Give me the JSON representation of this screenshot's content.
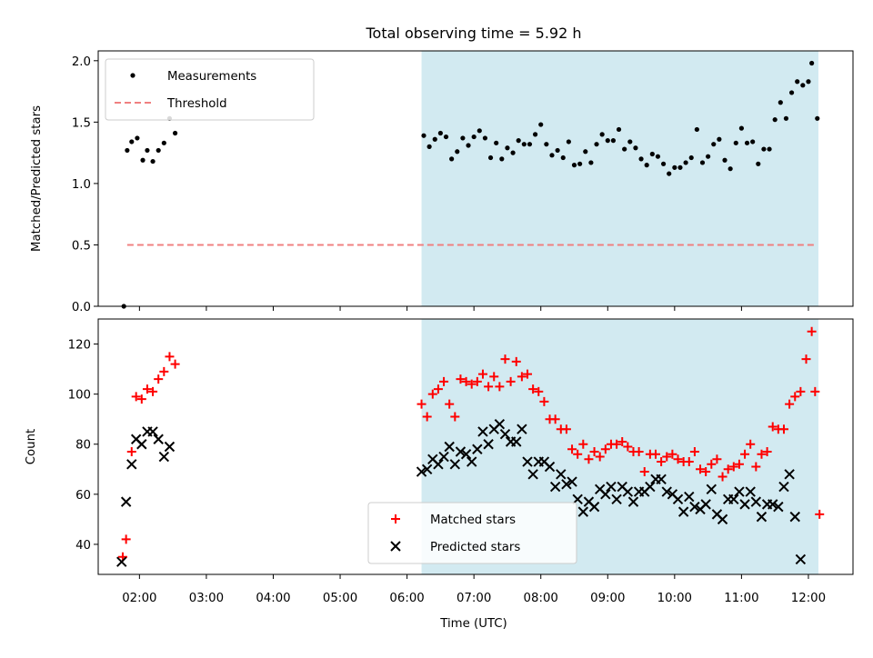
{
  "title": "Total observing time = 5.92 h",
  "xlabel": "Time (UTC)",
  "x_tick_labels": [
    "02:00",
    "03:00",
    "04:00",
    "05:00",
    "06:00",
    "07:00",
    "08:00",
    "09:00",
    "10:00",
    "11:00",
    "12:00"
  ],
  "colors": {
    "measurement": "#000000",
    "threshold": "#f08080",
    "matched": "#ff0000",
    "predicted": "#000000",
    "observing_window": "#add8e6"
  },
  "chart_data": [
    {
      "type": "scatter",
      "ylabel": "Matched/Predicted stars",
      "xlim": [
        "01:23",
        "12:40"
      ],
      "ylim": [
        0.0,
        2.08
      ],
      "y_ticks": [
        0.0,
        0.5,
        1.0,
        1.5,
        2.0
      ],
      "y_tick_labels": [
        "0.0",
        "0.5",
        "1.0",
        "1.5",
        "2.0"
      ],
      "legend_position": "upper-left",
      "observing_window": [
        "06:13",
        "12:09"
      ],
      "series": [
        {
          "name": "Measurements",
          "marker": "dot",
          "points": [
            [
              "01:46",
              0.0
            ],
            [
              "01:49",
              1.27
            ],
            [
              "01:53",
              1.34
            ],
            [
              "01:58",
              1.37
            ],
            [
              "02:03",
              1.19
            ],
            [
              "02:07",
              1.27
            ],
            [
              "02:12",
              1.18
            ],
            [
              "02:17",
              1.27
            ],
            [
              "02:22",
              1.33
            ],
            [
              "02:27",
              1.53
            ],
            [
              "02:32",
              1.41
            ],
            [
              "06:15",
              1.39
            ],
            [
              "06:20",
              1.3
            ],
            [
              "06:25",
              1.36
            ],
            [
              "06:30",
              1.41
            ],
            [
              "06:35",
              1.38
            ],
            [
              "06:40",
              1.2
            ],
            [
              "06:45",
              1.26
            ],
            [
              "06:50",
              1.37
            ],
            [
              "06:55",
              1.31
            ],
            [
              "07:00",
              1.38
            ],
            [
              "07:05",
              1.43
            ],
            [
              "07:10",
              1.37
            ],
            [
              "07:15",
              1.21
            ],
            [
              "07:20",
              1.33
            ],
            [
              "07:25",
              1.2
            ],
            [
              "07:30",
              1.29
            ],
            [
              "07:35",
              1.25
            ],
            [
              "07:40",
              1.35
            ],
            [
              "07:45",
              1.32
            ],
            [
              "07:50",
              1.32
            ],
            [
              "07:55",
              1.4
            ],
            [
              "08:00",
              1.48
            ],
            [
              "08:05",
              1.32
            ],
            [
              "08:10",
              1.23
            ],
            [
              "08:15",
              1.27
            ],
            [
              "08:20",
              1.21
            ],
            [
              "08:25",
              1.34
            ],
            [
              "08:30",
              1.15
            ],
            [
              "08:35",
              1.16
            ],
            [
              "08:40",
              1.26
            ],
            [
              "08:45",
              1.17
            ],
            [
              "08:50",
              1.32
            ],
            [
              "08:55",
              1.4
            ],
            [
              "09:00",
              1.35
            ],
            [
              "09:05",
              1.35
            ],
            [
              "09:10",
              1.44
            ],
            [
              "09:15",
              1.28
            ],
            [
              "09:20",
              1.34
            ],
            [
              "09:25",
              1.29
            ],
            [
              "09:30",
              1.2
            ],
            [
              "09:35",
              1.15
            ],
            [
              "09:40",
              1.24
            ],
            [
              "09:45",
              1.22
            ],
            [
              "09:50",
              1.16
            ],
            [
              "09:55",
              1.08
            ],
            [
              "10:00",
              1.13
            ],
            [
              "10:05",
              1.13
            ],
            [
              "10:10",
              1.17
            ],
            [
              "10:15",
              1.21
            ],
            [
              "10:20",
              1.44
            ],
            [
              "10:25",
              1.17
            ],
            [
              "10:30",
              1.22
            ],
            [
              "10:35",
              1.32
            ],
            [
              "10:40",
              1.36
            ],
            [
              "10:45",
              1.19
            ],
            [
              "10:50",
              1.12
            ],
            [
              "10:55",
              1.33
            ],
            [
              "11:00",
              1.45
            ],
            [
              "11:05",
              1.33
            ],
            [
              "11:10",
              1.34
            ],
            [
              "11:15",
              1.16
            ],
            [
              "11:20",
              1.28
            ],
            [
              "11:25",
              1.28
            ],
            [
              "11:30",
              1.52
            ],
            [
              "11:35",
              1.66
            ],
            [
              "11:40",
              1.53
            ],
            [
              "11:45",
              1.74
            ],
            [
              "11:50",
              1.83
            ],
            [
              "11:55",
              1.8
            ],
            [
              "12:00",
              1.83
            ],
            [
              "12:03",
              1.98
            ],
            [
              "12:08",
              1.53
            ]
          ]
        },
        {
          "name": "Threshold",
          "marker": "dashed-line",
          "points": [
            [
              "01:49",
              0.5
            ],
            [
              "12:08",
              0.5
            ]
          ]
        }
      ]
    },
    {
      "type": "scatter",
      "ylabel": "Count",
      "xlim": [
        "01:23",
        "12:40"
      ],
      "ylim": [
        28,
        130
      ],
      "y_ticks": [
        40,
        60,
        80,
        100,
        120
      ],
      "y_tick_labels": [
        "40",
        "60",
        "80",
        "100",
        "120"
      ],
      "legend_position": "lower-center",
      "observing_window": [
        "06:13",
        "12:09"
      ],
      "series": [
        {
          "name": "Matched stars",
          "marker": "plus",
          "points": [
            [
              "01:45",
              35
            ],
            [
              "01:48",
              42
            ],
            [
              "01:53",
              77
            ],
            [
              "01:57",
              99
            ],
            [
              "02:02",
              98
            ],
            [
              "02:07",
              102
            ],
            [
              "02:12",
              101
            ],
            [
              "02:17",
              106
            ],
            [
              "02:22",
              109
            ],
            [
              "02:27",
              115
            ],
            [
              "02:32",
              112
            ],
            [
              "06:13",
              96
            ],
            [
              "06:18",
              91
            ],
            [
              "06:23",
              100
            ],
            [
              "06:28",
              102
            ],
            [
              "06:33",
              105
            ],
            [
              "06:38",
              96
            ],
            [
              "06:43",
              91
            ],
            [
              "06:48",
              106
            ],
            [
              "06:53",
              105
            ],
            [
              "06:58",
              104
            ],
            [
              "07:03",
              105
            ],
            [
              "07:08",
              108
            ],
            [
              "07:13",
              103
            ],
            [
              "07:18",
              107
            ],
            [
              "07:23",
              103
            ],
            [
              "07:28",
              114
            ],
            [
              "07:33",
              105
            ],
            [
              "07:38",
              113
            ],
            [
              "07:43",
              107
            ],
            [
              "07:48",
              108
            ],
            [
              "07:53",
              102
            ],
            [
              "07:58",
              101
            ],
            [
              "08:03",
              97
            ],
            [
              "08:08",
              90
            ],
            [
              "08:13",
              90
            ],
            [
              "08:18",
              86
            ],
            [
              "08:23",
              86
            ],
            [
              "08:28",
              78
            ],
            [
              "08:33",
              76
            ],
            [
              "08:38",
              80
            ],
            [
              "08:43",
              74
            ],
            [
              "08:48",
              77
            ],
            [
              "08:53",
              75
            ],
            [
              "08:58",
              78
            ],
            [
              "09:03",
              80
            ],
            [
              "09:08",
              80
            ],
            [
              "09:13",
              81
            ],
            [
              "09:18",
              79
            ],
            [
              "09:23",
              77
            ],
            [
              "09:28",
              77
            ],
            [
              "09:33",
              69
            ],
            [
              "09:38",
              76
            ],
            [
              "09:43",
              76
            ],
            [
              "09:48",
              73
            ],
            [
              "09:53",
              75
            ],
            [
              "09:58",
              76
            ],
            [
              "10:03",
              74
            ],
            [
              "10:08",
              73
            ],
            [
              "10:13",
              73
            ],
            [
              "10:18",
              77
            ],
            [
              "10:23",
              70
            ],
            [
              "10:28",
              69
            ],
            [
              "10:33",
              72
            ],
            [
              "10:38",
              74
            ],
            [
              "10:43",
              67
            ],
            [
              "10:48",
              70
            ],
            [
              "10:53",
              71
            ],
            [
              "10:58",
              72
            ],
            [
              "11:03",
              76
            ],
            [
              "11:08",
              80
            ],
            [
              "11:13",
              71
            ],
            [
              "11:18",
              76
            ],
            [
              "11:23",
              77
            ],
            [
              "11:28",
              87
            ],
            [
              "11:33",
              86
            ],
            [
              "11:38",
              86
            ],
            [
              "11:43",
              96
            ],
            [
              "11:48",
              99
            ],
            [
              "11:53",
              101
            ],
            [
              "11:58",
              114
            ],
            [
              "12:03",
              125
            ],
            [
              "12:06",
              101
            ],
            [
              "12:10",
              52
            ]
          ]
        },
        {
          "name": "Predicted stars",
          "marker": "x",
          "points": [
            [
              "01:44",
              33
            ],
            [
              "01:48",
              57
            ],
            [
              "01:53",
              72
            ],
            [
              "01:57",
              82
            ],
            [
              "02:02",
              80
            ],
            [
              "02:07",
              85
            ],
            [
              "02:12",
              85
            ],
            [
              "02:17",
              82
            ],
            [
              "02:22",
              75
            ],
            [
              "02:27",
              79
            ],
            [
              "06:13",
              69
            ],
            [
              "06:18",
              70
            ],
            [
              "06:23",
              74
            ],
            [
              "06:28",
              72
            ],
            [
              "06:33",
              75
            ],
            [
              "06:38",
              79
            ],
            [
              "06:43",
              72
            ],
            [
              "06:48",
              77
            ],
            [
              "06:53",
              76
            ],
            [
              "06:58",
              73
            ],
            [
              "07:03",
              78
            ],
            [
              "07:08",
              85
            ],
            [
              "07:13",
              80
            ],
            [
              "07:18",
              86
            ],
            [
              "07:23",
              88
            ],
            [
              "07:28",
              84
            ],
            [
              "07:33",
              81
            ],
            [
              "07:38",
              81
            ],
            [
              "07:43",
              86
            ],
            [
              "07:48",
              73
            ],
            [
              "07:53",
              68
            ],
            [
              "07:58",
              73
            ],
            [
              "08:03",
              73
            ],
            [
              "08:08",
              71
            ],
            [
              "08:13",
              63
            ],
            [
              "08:18",
              68
            ],
            [
              "08:23",
              64
            ],
            [
              "08:28",
              65
            ],
            [
              "08:33",
              58
            ],
            [
              "08:38",
              53
            ],
            [
              "08:43",
              57
            ],
            [
              "08:48",
              55
            ],
            [
              "08:53",
              62
            ],
            [
              "08:58",
              60
            ],
            [
              "09:03",
              63
            ],
            [
              "09:08",
              58
            ],
            [
              "09:13",
              63
            ],
            [
              "09:18",
              61
            ],
            [
              "09:23",
              57
            ],
            [
              "09:28",
              61
            ],
            [
              "09:33",
              61
            ],
            [
              "09:38",
              63
            ],
            [
              "09:43",
              66
            ],
            [
              "09:48",
              66
            ],
            [
              "09:53",
              61
            ],
            [
              "09:58",
              60
            ],
            [
              "10:03",
              58
            ],
            [
              "10:08",
              53
            ],
            [
              "10:13",
              59
            ],
            [
              "10:18",
              55
            ],
            [
              "10:23",
              54
            ],
            [
              "10:28",
              56
            ],
            [
              "10:33",
              62
            ],
            [
              "10:38",
              52
            ],
            [
              "10:43",
              50
            ],
            [
              "10:48",
              58
            ],
            [
              "10:53",
              58
            ],
            [
              "10:58",
              61
            ],
            [
              "11:03",
              56
            ],
            [
              "11:08",
              61
            ],
            [
              "11:13",
              57
            ],
            [
              "11:18",
              51
            ],
            [
              "11:23",
              56
            ],
            [
              "11:28",
              56
            ],
            [
              "11:33",
              55
            ],
            [
              "11:38",
              63
            ],
            [
              "11:43",
              68
            ],
            [
              "11:48",
              51
            ],
            [
              "11:53",
              34
            ]
          ]
        }
      ]
    }
  ]
}
